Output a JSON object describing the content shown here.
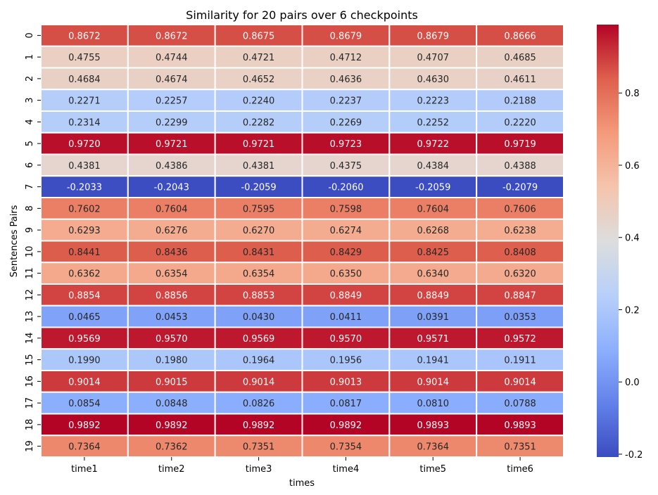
{
  "chart_data": {
    "type": "heatmap",
    "title": "Similarity for 20 pairs over 6 checkpoints",
    "xlabel": "times",
    "ylabel": "Sentences Pairs",
    "columns": [
      "time1",
      "time2",
      "time3",
      "time4",
      "time5",
      "time6"
    ],
    "rows": [
      "0",
      "1",
      "2",
      "3",
      "4",
      "5",
      "6",
      "7",
      "8",
      "9",
      "10",
      "11",
      "12",
      "13",
      "14",
      "15",
      "16",
      "17",
      "18",
      "19"
    ],
    "values": [
      [
        "0.8672",
        "0.8672",
        "0.8675",
        "0.8679",
        "0.8679",
        "0.8666"
      ],
      [
        "0.4755",
        "0.4744",
        "0.4721",
        "0.4712",
        "0.4707",
        "0.4685"
      ],
      [
        "0.4684",
        "0.4674",
        "0.4652",
        "0.4636",
        "0.4630",
        "0.4611"
      ],
      [
        "0.2271",
        "0.2257",
        "0.2240",
        "0.2237",
        "0.2223",
        "0.2188"
      ],
      [
        "0.2314",
        "0.2299",
        "0.2282",
        "0.2269",
        "0.2252",
        "0.2220"
      ],
      [
        "0.9720",
        "0.9721",
        "0.9721",
        "0.9723",
        "0.9722",
        "0.9719"
      ],
      [
        "0.4381",
        "0.4386",
        "0.4381",
        "0.4375",
        "0.4384",
        "0.4388"
      ],
      [
        "-0.2033",
        "-0.2043",
        "-0.2059",
        "-0.2060",
        "-0.2059",
        "-0.2079"
      ],
      [
        "0.7602",
        "0.7604",
        "0.7595",
        "0.7598",
        "0.7604",
        "0.7606"
      ],
      [
        "0.6293",
        "0.6276",
        "0.6270",
        "0.6274",
        "0.6268",
        "0.6238"
      ],
      [
        "0.8441",
        "0.8436",
        "0.8431",
        "0.8429",
        "0.8425",
        "0.8408"
      ],
      [
        "0.6362",
        "0.6354",
        "0.6354",
        "0.6350",
        "0.6340",
        "0.6320"
      ],
      [
        "0.8854",
        "0.8856",
        "0.8853",
        "0.8849",
        "0.8849",
        "0.8847"
      ],
      [
        "0.0465",
        "0.0453",
        "0.0430",
        "0.0411",
        "0.0391",
        "0.0353"
      ],
      [
        "0.9569",
        "0.9570",
        "0.9569",
        "0.9570",
        "0.9571",
        "0.9572"
      ],
      [
        "0.1990",
        "0.1980",
        "0.1964",
        "0.1956",
        "0.1941",
        "0.1911"
      ],
      [
        "0.9014",
        "0.9015",
        "0.9014",
        "0.9013",
        "0.9014",
        "0.9014"
      ],
      [
        "0.0854",
        "0.0848",
        "0.0826",
        "0.0817",
        "0.0810",
        "0.0788"
      ],
      [
        "0.9892",
        "0.9892",
        "0.9892",
        "0.9892",
        "0.9893",
        "0.9893"
      ],
      [
        "0.7364",
        "0.7362",
        "0.7351",
        "0.7354",
        "0.7364",
        "0.7351"
      ]
    ],
    "colormap": "coolwarm",
    "vmin": -0.2079,
    "vmax": 0.9893,
    "colorbar_ticks": [
      "-0.2",
      "0.0",
      "0.2",
      "0.4",
      "0.6",
      "0.8"
    ],
    "annotate": true,
    "grid": false,
    "legend": "colorbar-right"
  }
}
